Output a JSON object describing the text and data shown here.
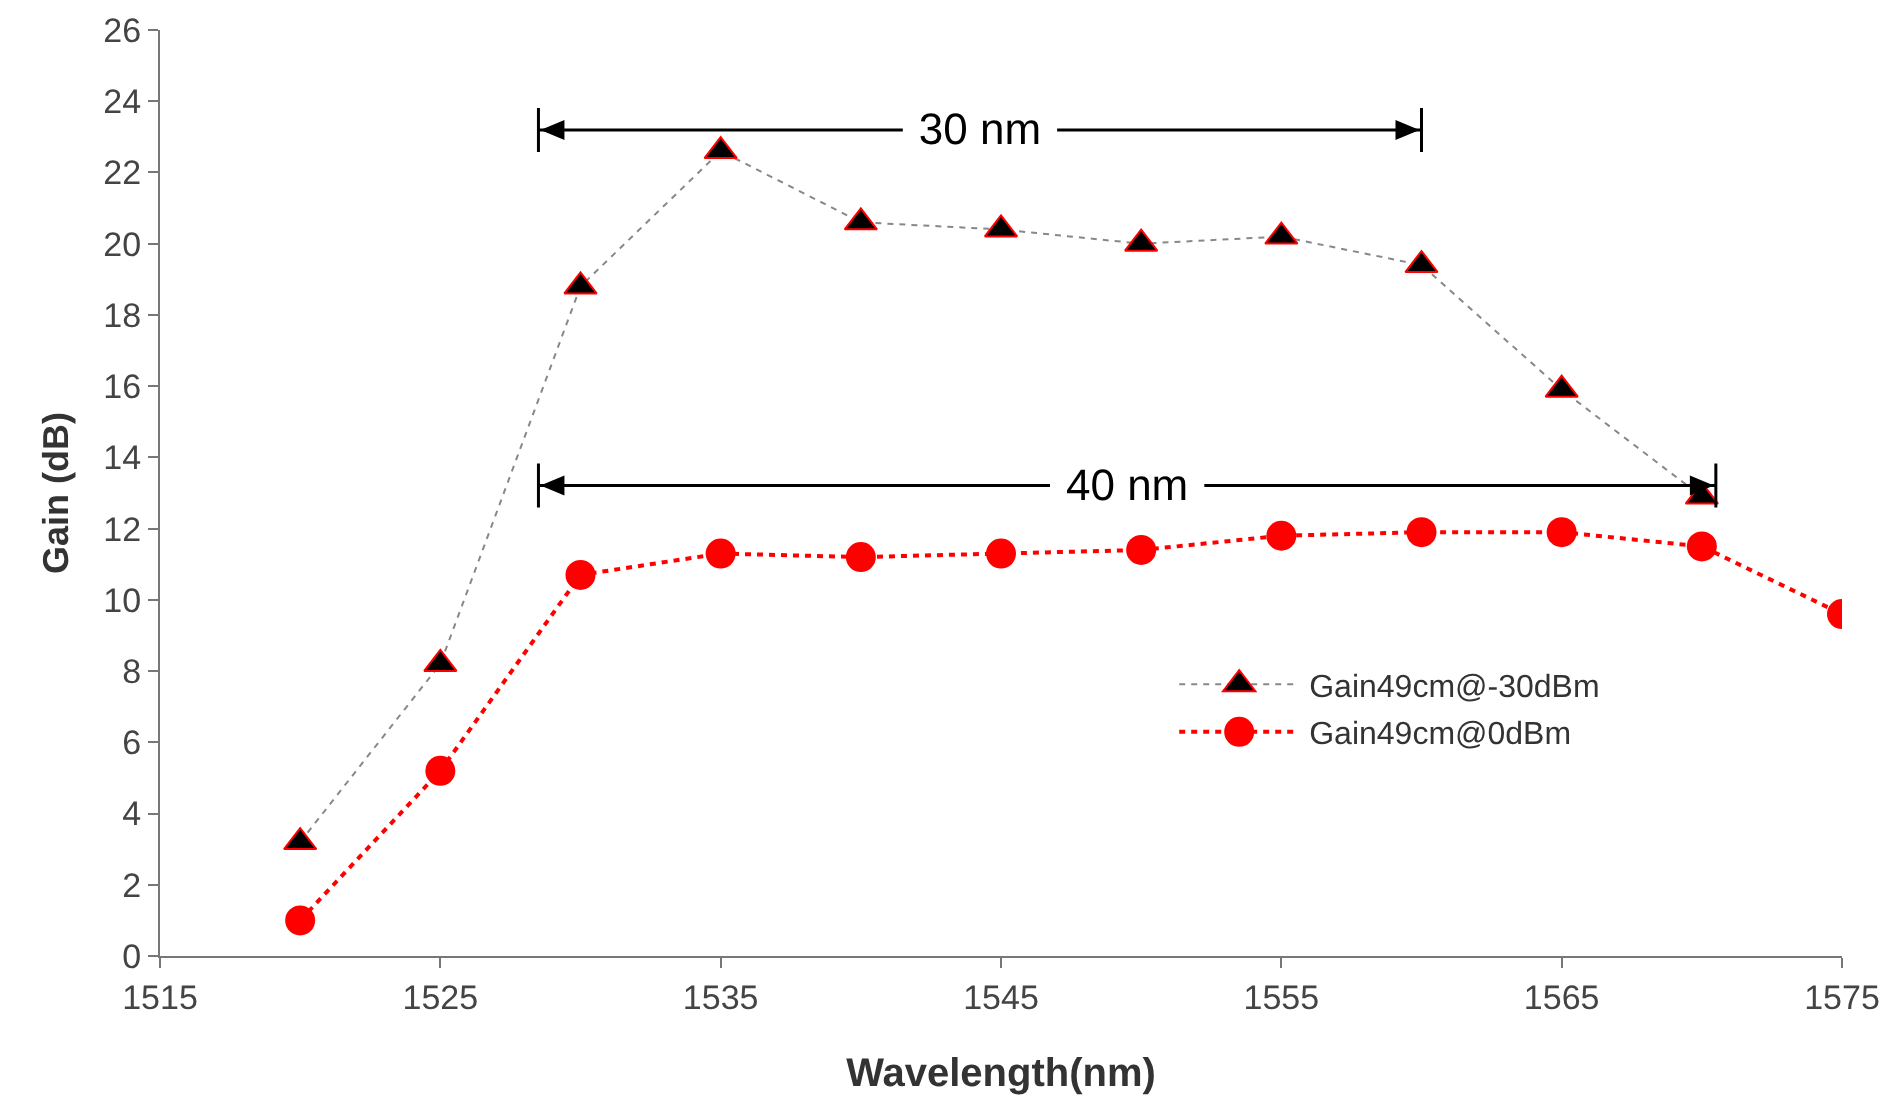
{
  "chart_data": {
    "type": "line",
    "xlabel": "Wavelength(nm)",
    "ylabel": "Gain (dB)",
    "x": [
      1520,
      1525,
      1530,
      1535,
      1540,
      1545,
      1550,
      1555,
      1560,
      1565,
      1570,
      1575
    ],
    "series": [
      {
        "name": "Gain49cm@-30dBm",
        "color": "#000000",
        "marker": "triangle",
        "values": [
          3.2,
          8.2,
          18.8,
          22.6,
          20.6,
          20.4,
          20.0,
          20.2,
          19.4,
          15.9,
          12.9,
          null
        ]
      },
      {
        "name": "Gain49cm@0dBm",
        "color": "#ff0000",
        "marker": "circle",
        "values": [
          1.0,
          5.2,
          10.7,
          11.3,
          11.2,
          11.3,
          11.4,
          11.8,
          11.9,
          11.9,
          11.5,
          9.6
        ]
      }
    ],
    "line_style": "dotted",
    "xlim": [
      1515,
      1575
    ],
    "xticks": [
      1515,
      1525,
      1535,
      1545,
      1555,
      1565,
      1575
    ],
    "ylim": [
      0,
      26
    ],
    "yticks": [
      0,
      2,
      4,
      6,
      8,
      10,
      12,
      14,
      16,
      18,
      20,
      22,
      24,
      26
    ],
    "grid": false,
    "legend": "right",
    "annotations": [
      "30 nm",
      "40 nm"
    ]
  }
}
